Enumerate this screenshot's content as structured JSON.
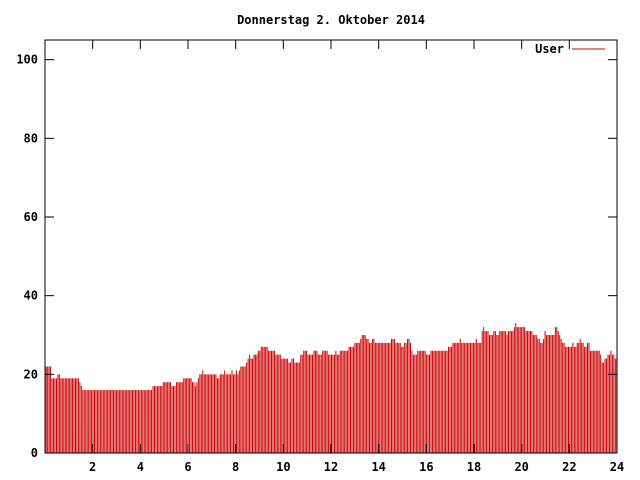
{
  "chart_data": {
    "type": "bar",
    "title": "Donnerstag 2. Oktober 2014",
    "xlabel": "",
    "ylabel": "",
    "xlim": [
      0,
      24
    ],
    "ylim": [
      0,
      105
    ],
    "xticks": [
      2,
      4,
      6,
      8,
      10,
      12,
      14,
      16,
      18,
      20,
      22,
      24
    ],
    "yticks": [
      0,
      20,
      40,
      60,
      80,
      100
    ],
    "grid": false,
    "legend": "top-right",
    "series": [
      {
        "name": "User",
        "color": "#cc0000",
        "values": [
          22,
          22,
          22,
          22,
          19,
          19,
          19,
          19,
          20,
          20,
          19,
          19,
          19,
          19,
          19,
          19,
          19,
          19,
          19,
          19,
          19,
          19,
          19,
          18,
          17,
          16,
          16,
          16,
          16,
          16,
          16,
          16,
          16,
          16,
          16,
          16,
          16,
          16,
          16,
          16,
          16,
          16,
          16,
          16,
          16,
          16,
          16,
          16,
          16,
          16,
          16,
          16,
          16,
          16,
          16,
          16,
          16,
          16,
          16,
          16,
          16,
          16,
          16,
          16,
          16,
          16,
          16,
          16,
          16,
          16,
          16,
          16,
          16,
          17,
          17,
          17,
          17,
          17,
          17,
          17,
          18,
          18,
          18,
          18,
          18,
          18,
          17,
          17,
          17,
          18,
          18,
          18,
          18,
          18,
          19,
          19,
          19,
          19,
          19,
          19,
          18,
          18,
          17,
          18,
          19,
          20,
          20,
          21,
          20,
          20,
          20,
          20,
          20,
          20,
          20,
          20,
          20,
          19,
          19,
          20,
          20,
          20,
          21,
          20,
          20,
          20,
          20,
          21,
          20,
          20,
          21,
          20,
          21,
          22,
          22,
          22,
          22,
          23,
          24,
          25,
          24,
          24,
          25,
          25,
          25,
          26,
          26,
          27,
          27,
          27,
          27,
          27,
          26,
          26,
          26,
          26,
          26,
          25,
          25,
          25,
          25,
          24,
          24,
          24,
          24,
          24,
          23,
          23,
          24,
          24,
          23,
          23,
          23,
          23,
          25,
          25,
          26,
          26,
          26,
          25,
          25,
          25,
          25,
          26,
          26,
          26,
          25,
          25,
          25,
          26,
          26,
          26,
          26,
          25,
          25,
          25,
          25,
          25,
          26,
          25,
          25,
          26,
          26,
          26,
          26,
          26,
          26,
          27,
          27,
          27,
          27,
          28,
          28,
          28,
          28,
          29,
          30,
          30,
          30,
          29,
          29,
          28,
          28,
          29,
          29,
          28,
          28,
          28,
          28,
          28,
          28,
          28,
          28,
          28,
          28,
          28,
          29,
          29,
          29,
          28,
          28,
          28,
          28,
          27,
          27,
          28,
          28,
          29,
          29,
          28,
          26,
          25,
          25,
          25,
          26,
          26,
          26,
          26,
          26,
          26,
          25,
          25,
          25,
          26,
          26,
          26,
          26,
          26,
          26,
          26,
          26,
          26,
          26,
          26,
          26,
          27,
          27,
          27,
          28,
          28,
          28,
          28,
          28,
          29,
          28,
          28,
          28,
          28,
          28,
          28,
          28,
          28,
          28,
          28,
          29,
          28,
          28,
          28,
          31,
          32,
          31,
          31,
          31,
          30,
          30,
          30,
          31,
          31,
          30,
          30,
          31,
          31,
          31,
          31,
          31,
          30,
          31,
          31,
          31,
          31,
          32,
          33,
          32,
          32,
          32,
          32,
          32,
          32,
          31,
          31,
          31,
          31,
          31,
          30,
          30,
          30,
          29,
          29,
          28,
          28,
          29,
          31,
          30,
          30,
          30,
          30,
          30,
          30,
          32,
          32,
          31,
          30,
          29,
          28,
          28,
          27,
          27,
          27,
          27,
          27,
          28,
          27,
          27,
          28,
          28,
          29,
          28,
          28,
          27,
          27,
          28,
          28,
          26,
          26,
          26,
          26,
          26,
          26,
          26,
          25,
          23,
          23,
          24,
          24,
          25,
          25,
          26,
          25,
          25,
          24,
          24
        ]
      }
    ]
  }
}
